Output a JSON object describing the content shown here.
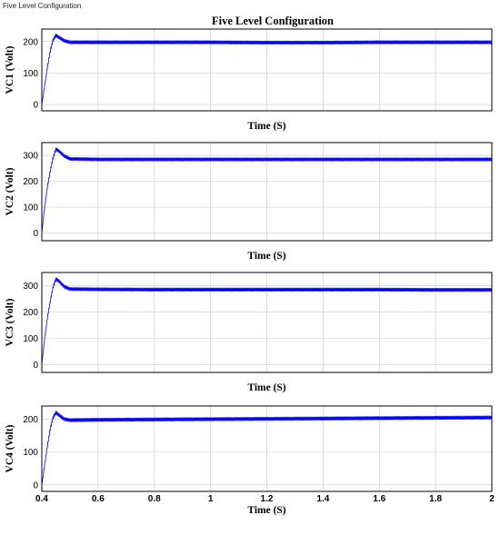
{
  "window": {
    "title": "Five Level Configuration"
  },
  "chart_data": {
    "type": "line",
    "title": "Five Level Configuration",
    "grid": true,
    "panels": [
      {
        "name": "VC1",
        "ylabel": "VC1 (Volt)",
        "xlabel": "Time (S)",
        "xlim": [
          0.4,
          2
        ],
        "ylim": [
          -20,
          240
        ],
        "yticks": [
          0,
          100,
          200
        ],
        "xticks": [],
        "series": [
          {
            "points": [
              [
                0.4,
                0
              ],
              [
                0.41,
                60
              ],
              [
                0.42,
                120
              ],
              [
                0.43,
                170
              ],
              [
                0.44,
                205
              ],
              [
                0.45,
                220
              ],
              [
                0.46,
                214
              ],
              [
                0.48,
                203
              ],
              [
                0.5,
                198
              ],
              [
                0.6,
                198
              ],
              [
                0.8,
                198
              ],
              [
                1.0,
                198
              ],
              [
                1.2,
                197
              ],
              [
                1.4,
                197
              ],
              [
                1.6,
                198
              ],
              [
                1.8,
                198
              ],
              [
                2.0,
                198
              ]
            ],
            "ripple": 10
          }
        ]
      },
      {
        "name": "VC2",
        "ylabel": "VC2 (Volt)",
        "xlabel": "Time (S)",
        "xlim": [
          0.4,
          2
        ],
        "ylim": [
          -30,
          350
        ],
        "yticks": [
          0,
          100,
          200,
          300
        ],
        "xticks": [],
        "series": [
          {
            "points": [
              [
                0.4,
                0
              ],
              [
                0.41,
                100
              ],
              [
                0.42,
                180
              ],
              [
                0.43,
                240
              ],
              [
                0.44,
                290
              ],
              [
                0.45,
                325
              ],
              [
                0.46,
                318
              ],
              [
                0.48,
                298
              ],
              [
                0.5,
                287
              ],
              [
                0.6,
                285
              ],
              [
                0.8,
                285
              ],
              [
                1.0,
                285
              ],
              [
                1.2,
                285
              ],
              [
                1.4,
                285
              ],
              [
                1.6,
                285
              ],
              [
                1.8,
                285
              ],
              [
                2.0,
                285
              ]
            ],
            "ripple": 12
          }
        ]
      },
      {
        "name": "VC3",
        "ylabel": "VC3 (Volt)",
        "xlabel": "Time (S)",
        "xlim": [
          0.4,
          2
        ],
        "ylim": [
          -30,
          350
        ],
        "yticks": [
          0,
          100,
          200,
          300
        ],
        "xticks": [],
        "series": [
          {
            "points": [
              [
                0.4,
                0
              ],
              [
                0.41,
                100
              ],
              [
                0.42,
                180
              ],
              [
                0.43,
                240
              ],
              [
                0.44,
                295
              ],
              [
                0.45,
                325
              ],
              [
                0.46,
                318
              ],
              [
                0.48,
                296
              ],
              [
                0.5,
                287
              ],
              [
                0.6,
                286
              ],
              [
                0.8,
                285
              ],
              [
                1.0,
                285
              ],
              [
                1.2,
                285
              ],
              [
                1.4,
                285
              ],
              [
                1.6,
                285
              ],
              [
                1.8,
                284
              ],
              [
                2.0,
                284
              ]
            ],
            "ripple": 12
          }
        ]
      },
      {
        "name": "VC4",
        "ylabel": "VC4 (Volt)",
        "xlabel": "Time (S)",
        "xlim": [
          0.4,
          2
        ],
        "ylim": [
          -20,
          240
        ],
        "yticks": [
          0,
          100,
          200
        ],
        "xticks": [
          0.4,
          0.6,
          0.8,
          1,
          1.2,
          1.4,
          1.6,
          1.8,
          2
        ],
        "xticklabels": [
          "0.4",
          "0.6",
          "0.8",
          "1",
          "1.2",
          "1.4",
          "1.6",
          "1.8",
          "2"
        ],
        "series": [
          {
            "points": [
              [
                0.4,
                0
              ],
              [
                0.41,
                60
              ],
              [
                0.42,
                120
              ],
              [
                0.43,
                170
              ],
              [
                0.44,
                205
              ],
              [
                0.45,
                220
              ],
              [
                0.46,
                213
              ],
              [
                0.48,
                200
              ],
              [
                0.5,
                197
              ],
              [
                0.6,
                198
              ],
              [
                0.8,
                199
              ],
              [
                1.0,
                200
              ],
              [
                1.2,
                201
              ],
              [
                1.4,
                202
              ],
              [
                1.6,
                203
              ],
              [
                1.8,
                204
              ],
              [
                2.0,
                205
              ]
            ],
            "ripple": 10
          }
        ]
      }
    ]
  }
}
